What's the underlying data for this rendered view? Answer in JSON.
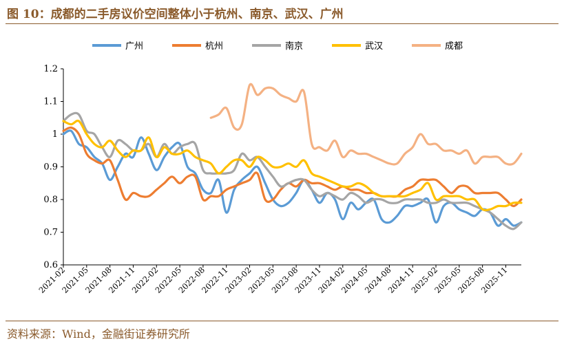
{
  "header": {
    "title": "图 10：成都的二手房议价空间整体小于杭州、南京、武汉、广州"
  },
  "footer": {
    "source": "资料来源：Wind，金融街证券研究所"
  },
  "chart_data": {
    "type": "line",
    "ylim": [
      0.6,
      1.2
    ],
    "yticks": [
      "0.6",
      "0.7",
      "0.8",
      "0.9",
      "1",
      "1.1",
      "1.2"
    ],
    "x_start": "2021-02",
    "x_end": "2026-01",
    "xticks": [
      "2021-02",
      "2021-05",
      "2021-08",
      "2021-11",
      "2022-02",
      "2022-05",
      "2022-08",
      "2022-11",
      "2023-02",
      "2023-05",
      "2023-08",
      "2023-11",
      "2024-02",
      "2024-05",
      "2024-08",
      "2024-11",
      "2025-02",
      "2025-05",
      "2025-08",
      "2025-11"
    ],
    "legend_position": "top",
    "series": [
      {
        "name": "广州",
        "color": "#5b9bd5",
        "x": [
          "2021-02",
          "2021-03",
          "2021-04",
          "2021-05",
          "2021-06",
          "2021-07",
          "2021-08",
          "2021-09",
          "2021-10",
          "2021-11",
          "2021-12",
          "2022-01",
          "2022-02",
          "2022-03",
          "2022-04",
          "2022-05",
          "2022-06",
          "2022-07",
          "2022-08",
          "2022-09",
          "2022-10",
          "2022-11",
          "2022-12",
          "2023-01",
          "2023-02",
          "2023-03",
          "2023-04",
          "2023-05",
          "2023-06",
          "2023-07",
          "2023-08",
          "2023-09",
          "2023-10",
          "2023-11",
          "2023-12",
          "2024-01",
          "2024-02",
          "2024-03",
          "2024-04",
          "2024-05",
          "2024-06",
          "2024-07",
          "2024-08",
          "2024-09",
          "2024-10",
          "2024-11",
          "2024-12",
          "2025-01",
          "2025-02",
          "2025-03",
          "2025-04",
          "2025-05",
          "2025-06",
          "2025-07",
          "2025-08",
          "2025-09",
          "2025-10",
          "2025-11",
          "2025-12",
          "2026-01"
        ],
        "y": [
          1.0,
          1.01,
          0.97,
          0.96,
          0.93,
          0.91,
          0.86,
          0.9,
          0.94,
          0.93,
          0.99,
          0.94,
          0.89,
          0.93,
          0.96,
          0.97,
          0.9,
          0.88,
          0.83,
          0.82,
          0.86,
          0.76,
          0.83,
          0.86,
          0.88,
          0.9,
          0.85,
          0.8,
          0.78,
          0.79,
          0.82,
          0.86,
          0.83,
          0.79,
          0.82,
          0.8,
          0.74,
          0.79,
          0.77,
          0.79,
          0.8,
          0.74,
          0.73,
          0.75,
          0.78,
          0.78,
          0.79,
          0.8,
          0.73,
          0.78,
          0.79,
          0.77,
          0.76,
          0.75,
          0.77,
          0.76,
          0.72,
          0.74,
          0.72,
          0.73
        ]
      },
      {
        "name": "杭州",
        "color": "#ed7d31",
        "x": [
          "2021-02",
          "2021-03",
          "2021-04",
          "2021-05",
          "2021-06",
          "2021-07",
          "2021-08",
          "2021-09",
          "2021-10",
          "2021-11",
          "2021-12",
          "2022-01",
          "2022-02",
          "2022-03",
          "2022-04",
          "2022-05",
          "2022-06",
          "2022-07",
          "2022-08",
          "2022-09",
          "2022-10",
          "2022-11",
          "2022-12",
          "2023-01",
          "2023-02",
          "2023-03",
          "2023-04",
          "2023-05",
          "2023-06",
          "2023-07",
          "2023-08",
          "2023-09",
          "2023-10",
          "2023-11",
          "2023-12",
          "2024-01",
          "2024-02",
          "2024-03",
          "2024-04",
          "2024-05",
          "2024-06",
          "2024-07",
          "2024-08",
          "2024-09",
          "2024-10",
          "2024-11",
          "2024-12",
          "2025-01",
          "2025-02",
          "2025-03",
          "2025-04",
          "2025-05",
          "2025-06",
          "2025-07",
          "2025-08",
          "2025-09",
          "2025-10",
          "2025-11",
          "2025-12",
          "2026-01"
        ],
        "y": [
          1.01,
          1.02,
          1.0,
          0.94,
          0.92,
          0.91,
          0.92,
          0.86,
          0.8,
          0.82,
          0.81,
          0.81,
          0.83,
          0.85,
          0.87,
          0.85,
          0.87,
          0.87,
          0.8,
          0.81,
          0.81,
          0.83,
          0.84,
          0.85,
          0.86,
          0.88,
          0.8,
          0.8,
          0.83,
          0.85,
          0.84,
          0.86,
          0.85,
          0.85,
          0.84,
          0.83,
          0.84,
          0.83,
          0.83,
          0.82,
          0.82,
          0.81,
          0.81,
          0.81,
          0.83,
          0.84,
          0.86,
          0.86,
          0.86,
          0.84,
          0.82,
          0.84,
          0.84,
          0.82,
          0.82,
          0.82,
          0.82,
          0.8,
          0.78,
          0.8
        ]
      },
      {
        "name": "南京",
        "color": "#a5a5a5",
        "x": [
          "2021-02",
          "2021-03",
          "2021-04",
          "2021-05",
          "2021-06",
          "2021-07",
          "2021-08",
          "2021-09",
          "2021-10",
          "2021-11",
          "2021-12",
          "2022-01",
          "2022-02",
          "2022-03",
          "2022-04",
          "2022-05",
          "2022-06",
          "2022-07",
          "2022-08",
          "2022-09",
          "2022-10",
          "2022-11",
          "2022-12",
          "2023-01",
          "2023-02",
          "2023-03",
          "2023-04",
          "2023-05",
          "2023-06",
          "2023-07",
          "2023-08",
          "2023-09",
          "2023-10",
          "2023-11",
          "2023-12",
          "2024-01",
          "2024-02",
          "2024-03",
          "2024-04",
          "2024-05",
          "2024-06",
          "2024-07",
          "2024-08",
          "2024-09",
          "2024-10",
          "2024-11",
          "2024-12",
          "2025-01",
          "2025-02",
          "2025-03",
          "2025-04",
          "2025-05",
          "2025-06",
          "2025-07",
          "2025-08",
          "2025-09",
          "2025-10",
          "2025-11",
          "2025-12",
          "2026-01"
        ],
        "y": [
          1.04,
          1.06,
          1.06,
          1.01,
          1.0,
          0.96,
          0.93,
          0.98,
          0.97,
          0.95,
          0.95,
          0.97,
          0.93,
          0.97,
          0.94,
          0.96,
          0.97,
          0.97,
          0.89,
          0.88,
          0.88,
          0.88,
          0.89,
          0.94,
          0.92,
          0.93,
          0.9,
          0.87,
          0.84,
          0.85,
          0.86,
          0.86,
          0.83,
          0.81,
          0.82,
          0.81,
          0.8,
          0.82,
          0.81,
          0.79,
          0.8,
          0.8,
          0.79,
          0.79,
          0.8,
          0.8,
          0.8,
          0.79,
          0.79,
          0.8,
          0.79,
          0.79,
          0.79,
          0.78,
          0.77,
          0.76,
          0.74,
          0.72,
          0.71,
          0.73
        ]
      },
      {
        "name": "武汉",
        "color": "#ffc000",
        "x": [
          "2021-02",
          "2021-03",
          "2021-04",
          "2021-05",
          "2021-06",
          "2021-07",
          "2021-08",
          "2021-09",
          "2021-10",
          "2021-11",
          "2021-12",
          "2022-01",
          "2022-02",
          "2022-03",
          "2022-04",
          "2022-05",
          "2022-06",
          "2022-07",
          "2022-08",
          "2022-09",
          "2022-10",
          "2022-11",
          "2022-12",
          "2023-01",
          "2023-02",
          "2023-03",
          "2023-04",
          "2023-05",
          "2023-06",
          "2023-07",
          "2023-08",
          "2023-09",
          "2023-10",
          "2023-11",
          "2023-12",
          "2024-01",
          "2024-02",
          "2024-03",
          "2024-04",
          "2024-05",
          "2024-06",
          "2024-07",
          "2024-08",
          "2024-09",
          "2024-10",
          "2024-11",
          "2024-12",
          "2025-01",
          "2025-02",
          "2025-03",
          "2025-04",
          "2025-05",
          "2025-06",
          "2025-07",
          "2025-08",
          "2025-09",
          "2025-10",
          "2025-11",
          "2025-12",
          "2026-01"
        ],
        "y": [
          1.04,
          1.03,
          1.04,
          1.0,
          0.97,
          0.96,
          0.98,
          0.95,
          0.93,
          0.95,
          0.95,
          0.99,
          0.93,
          0.96,
          0.94,
          0.94,
          0.95,
          0.93,
          0.92,
          0.91,
          0.88,
          0.9,
          0.92,
          0.92,
          0.9,
          0.93,
          0.92,
          0.9,
          0.9,
          0.91,
          0.9,
          0.92,
          0.88,
          0.87,
          0.86,
          0.85,
          0.84,
          0.84,
          0.85,
          0.84,
          0.82,
          0.81,
          0.81,
          0.81,
          0.81,
          0.82,
          0.83,
          0.85,
          0.8,
          0.81,
          0.81,
          0.81,
          0.8,
          0.8,
          0.77,
          0.77,
          0.78,
          0.78,
          0.79,
          0.79
        ]
      },
      {
        "name": "成都",
        "color": "#f4b183",
        "x": [
          "2022-09",
          "2022-10",
          "2022-11",
          "2022-12",
          "2023-01",
          "2023-02",
          "2023-03",
          "2023-04",
          "2023-05",
          "2023-06",
          "2023-07",
          "2023-08",
          "2023-09",
          "2023-10",
          "2023-11",
          "2023-12",
          "2024-01",
          "2024-02",
          "2024-03",
          "2024-04",
          "2024-05",
          "2024-06",
          "2024-07",
          "2024-08",
          "2024-09",
          "2024-10",
          "2024-11",
          "2024-12",
          "2025-01",
          "2025-02",
          "2025-03",
          "2025-04",
          "2025-05",
          "2025-06",
          "2025-07",
          "2025-08",
          "2025-09",
          "2025-10",
          "2025-11",
          "2025-12",
          "2026-01"
        ],
        "y": [
          1.05,
          1.06,
          1.08,
          1.02,
          1.03,
          1.15,
          1.12,
          1.14,
          1.14,
          1.12,
          1.11,
          1.1,
          1.13,
          0.97,
          0.96,
          0.95,
          0.98,
          0.93,
          0.95,
          0.94,
          0.94,
          0.93,
          0.92,
          0.91,
          0.91,
          0.94,
          0.96,
          1.0,
          0.97,
          0.97,
          0.95,
          0.95,
          0.94,
          0.95,
          0.91,
          0.93,
          0.93,
          0.93,
          0.91,
          0.91,
          0.94
        ]
      }
    ]
  }
}
